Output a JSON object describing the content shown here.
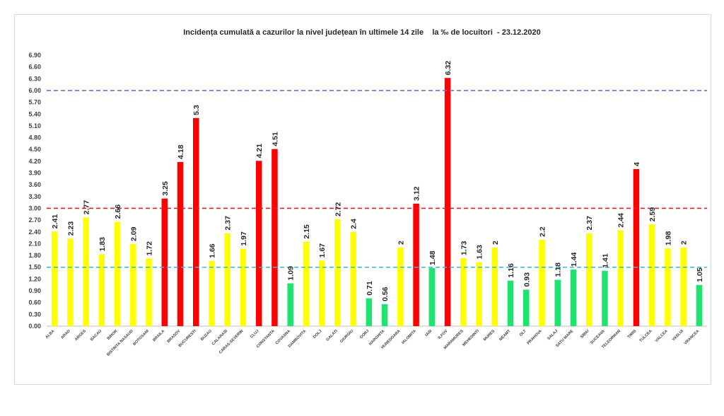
{
  "chart_data": {
    "type": "bar",
    "title": "Incidența cumulată a cazurilor la nivel județean în ultimele 14 zile    la ‰ de locuitori  - 23.12.2020",
    "xlabel": "",
    "ylabel": "",
    "ylim": [
      0,
      6.9
    ],
    "yticks": [
      "0.00",
      "0.30",
      "0.60",
      "0.90",
      "1.20",
      "1.50",
      "1.80",
      "2.10",
      "2.40",
      "2.70",
      "3.00",
      "3.30",
      "3.60",
      "3.90",
      "4.20",
      "4.50",
      "4.80",
      "5.10",
      "5.40",
      "5.70",
      "6.00",
      "6.30",
      "6.60",
      "6.90"
    ],
    "categories": [
      "ALBA",
      "ARAD",
      "ARGES",
      "BACAU",
      "BIHOR",
      "BISTRITA NASAUD",
      "BOTOSANI",
      "BRAILA",
      "BRASOV",
      "BUCURESTI",
      "BUZAU",
      "CALARASI",
      "CARAS-SEVERIN",
      "CLUJ",
      "CONSTANTA",
      "COVASNA",
      "DAMBOVITA",
      "DOLJ",
      "GALATI",
      "GIURGIU",
      "GORJ",
      "HARGHITA",
      "HUNEDOARA",
      "IALOMITA",
      "IASI",
      "ILFOV",
      "MARAMURES",
      "MEHEDINTI",
      "MURES",
      "NEAMT",
      "OLT",
      "PRAHOVA",
      "SALAJ",
      "SATU MARE",
      "SIBIU",
      "SUCEAVA",
      "TELEORMAN",
      "TIMIS",
      "TULCEA",
      "VALCEA",
      "VASLUI",
      "VRANCEA"
    ],
    "values": [
      2.41,
      2.23,
      2.77,
      1.83,
      2.66,
      2.09,
      1.72,
      3.25,
      4.18,
      5.3,
      1.66,
      2.37,
      1.97,
      4.21,
      4.51,
      1.09,
      2.15,
      1.67,
      2.72,
      2.4,
      0.71,
      0.56,
      2,
      3.12,
      1.48,
      6.32,
      1.73,
      1.63,
      2,
      1.16,
      0.93,
      2.2,
      1.18,
      1.44,
      2.37,
      1.41,
      2.44,
      4,
      2.59,
      1.98,
      2,
      1.05
    ],
    "value_labels": [
      "2.41",
      "2.23",
      "2.77",
      "1.83",
      "2.66",
      "2.09",
      "1.72",
      "3.25",
      "4.18",
      "5.3",
      "1.66",
      "2.37",
      "1.97",
      "4.21",
      "4.51",
      "1.09",
      "2.15",
      "1.67",
      "2.72",
      "2.4",
      "0.71",
      "0.56",
      "2",
      "3.12",
      "1.48",
      "6.32",
      "1.73",
      "1.63",
      "2",
      "1.16",
      "0.93",
      "2.2",
      "1.18",
      "1.44",
      "2.37",
      "1.41",
      "2.44",
      "4",
      "2.59",
      "1.98",
      "2",
      "1.05"
    ],
    "thresholds": [
      {
        "value": 6.0,
        "color": "#9b59d0"
      },
      {
        "value": 3.0,
        "color": "#e02020"
      },
      {
        "value": 1.5,
        "color": "#35b9e0"
      }
    ],
    "colors": {
      "green": "#1ee36e",
      "yellow": "#ffff00",
      "red": "#ff0000"
    },
    "grid": false,
    "legend": "none"
  }
}
